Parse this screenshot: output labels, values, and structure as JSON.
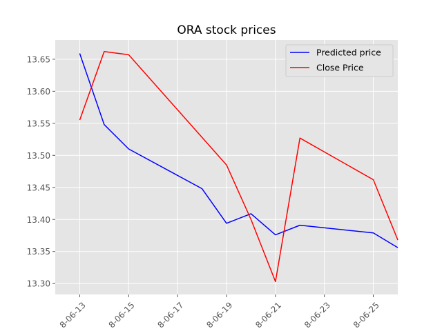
{
  "chart_data": {
    "type": "line",
    "title": "ORA stock prices",
    "xlabel": "",
    "ylabel": "",
    "x": [
      "2018-06-13",
      "2018-06-14",
      "2018-06-15",
      "2018-06-18",
      "2018-06-19",
      "2018-06-20",
      "2018-06-21",
      "2018-06-22",
      "2018-06-25",
      "2018-06-26"
    ],
    "x_tick_labels": [
      "8-06-13",
      "8-06-15",
      "8-06-17",
      "8-06-19",
      "8-06-21",
      "8-06-23",
      "8-06-25"
    ],
    "x_tick_dates": [
      "2018-06-13",
      "2018-06-15",
      "2018-06-17",
      "2018-06-19",
      "2018-06-21",
      "2018-06-23",
      "2018-06-25"
    ],
    "xlim": [
      "2018-06-12",
      "2018-06-26"
    ],
    "y_ticks": [
      "13.30",
      "13.35",
      "13.40",
      "13.45",
      "13.50",
      "13.55",
      "13.60",
      "13.65"
    ],
    "ylim": [
      13.283,
      13.68
    ],
    "grid": true,
    "legend_position": "top-right",
    "series": [
      {
        "name": "Predicted price",
        "color": "#0000ff",
        "values": [
          13.659,
          13.548,
          13.51,
          13.448,
          13.394,
          13.409,
          13.376,
          13.391,
          13.379,
          13.356
        ]
      },
      {
        "name": "Close Price",
        "color": "#ff0000",
        "values": [
          13.555,
          13.662,
          13.657,
          13.528,
          13.485,
          13.4,
          13.303,
          13.527,
          13.462,
          13.368
        ]
      }
    ]
  }
}
